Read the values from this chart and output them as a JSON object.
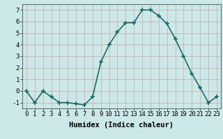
{
  "x": [
    0,
    1,
    2,
    3,
    4,
    5,
    6,
    7,
    8,
    9,
    10,
    11,
    12,
    13,
    14,
    15,
    16,
    17,
    18,
    19,
    20,
    21,
    22,
    23
  ],
  "y": [
    0,
    -1,
    0,
    -0.5,
    -1,
    -1,
    -1.1,
    -1.2,
    -0.5,
    2.5,
    4.0,
    5.1,
    5.9,
    5.9,
    7.0,
    7.0,
    6.5,
    5.8,
    4.5,
    3.0,
    1.5,
    0.3,
    -1.0,
    -0.5
  ],
  "line_color": "#1a6b6b",
  "marker": "+",
  "marker_color": "#1a6b6b",
  "marker_size": 4,
  "background_color": "#cde8e8",
  "grid_color": "#c8a8a8",
  "xlabel": "Humidex (Indice chaleur)",
  "xlim": [
    -0.5,
    23.5
  ],
  "ylim": [
    -1.5,
    7.5
  ],
  "yticks": [
    -1,
    0,
    1,
    2,
    3,
    4,
    5,
    6,
    7
  ],
  "xlabel_fontsize": 7.5,
  "tick_fontsize": 6.5,
  "line_width": 1.2
}
